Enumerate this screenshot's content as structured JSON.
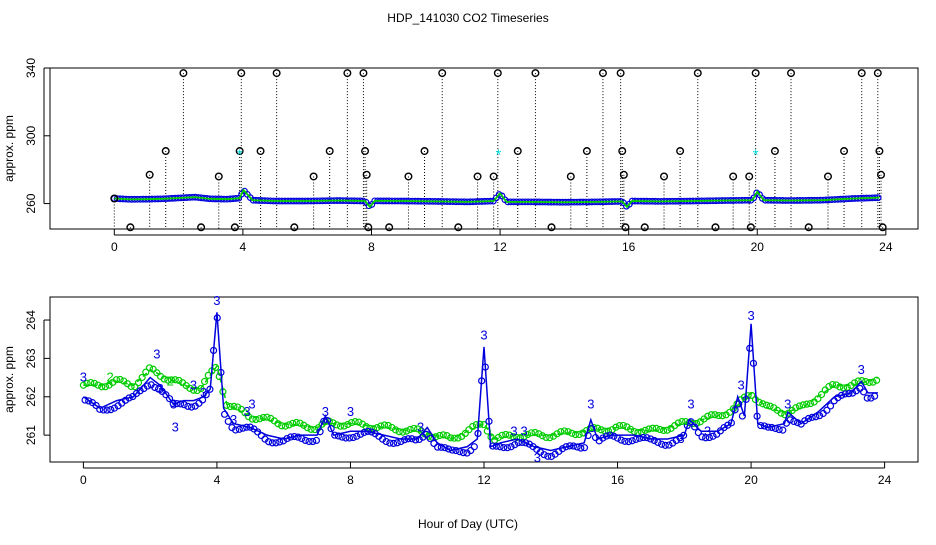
{
  "title": "HDP_141030  CO2 Timeseries",
  "xlabel": "Hour of Day (UTC)",
  "colors": {
    "frame": "#000000",
    "raw_points": "#000000",
    "blue": "#0000dd",
    "green": "#00cc00",
    "cyan": "#00dddd"
  },
  "chart_data": [
    {
      "type": "scatter",
      "panel": "top",
      "title": "HDP_141030  CO2 Timeseries",
      "xlabel": "",
      "ylabel": "approx. ppm",
      "xlim": [
        -2,
        25
      ],
      "ylim": [
        245,
        340
      ],
      "xticks": [
        0,
        4,
        8,
        12,
        16,
        20,
        24
      ],
      "yticks": [
        260,
        300,
        340
      ],
      "xtick_labels": [
        "0",
        "4",
        "8",
        "12",
        "16",
        "20",
        "24"
      ],
      "ytick_labels": [
        "260",
        "300",
        "340"
      ],
      "baseline": [
        [
          0,
          263
        ],
        [
          0.5,
          262.5
        ],
        [
          1,
          262.6
        ],
        [
          1.5,
          262.8
        ],
        [
          2,
          263.3
        ],
        [
          2.5,
          263.8
        ],
        [
          3,
          262.8
        ],
        [
          3.5,
          262.6
        ],
        [
          3.9,
          263.2
        ],
        [
          4.02,
          268
        ],
        [
          4.3,
          262
        ],
        [
          5,
          261.5
        ],
        [
          6,
          261.5
        ],
        [
          7,
          261.8
        ],
        [
          7.8,
          261.5
        ],
        [
          7.95,
          258
        ],
        [
          8.1,
          261.6
        ],
        [
          9,
          261.5
        ],
        [
          10,
          261.3
        ],
        [
          11,
          261
        ],
        [
          11.8,
          261.5
        ],
        [
          12,
          266
        ],
        [
          12.2,
          261
        ],
        [
          13,
          261
        ],
        [
          14,
          260.8
        ],
        [
          15,
          261
        ],
        [
          15.8,
          261.3
        ],
        [
          15.95,
          258
        ],
        [
          16.1,
          261.5
        ],
        [
          17,
          261.3
        ],
        [
          18,
          261.5
        ],
        [
          19,
          261.8
        ],
        [
          19.85,
          262
        ],
        [
          20,
          267
        ],
        [
          20.2,
          262
        ],
        [
          21,
          261.8
        ],
        [
          22,
          262
        ],
        [
          23,
          263
        ],
        [
          23.8,
          263.5
        ]
      ],
      "raw_points": [
        {
          "x": 0,
          "y": 263
        },
        {
          "x": 0.5,
          "y": 246
        },
        {
          "x": 1.1,
          "y": 277
        },
        {
          "x": 1.6,
          "y": 291
        },
        {
          "x": 2.15,
          "y": 337
        },
        {
          "x": 2.7,
          "y": 246
        },
        {
          "x": 3.25,
          "y": 276
        },
        {
          "x": 3.75,
          "y": 246
        },
        {
          "x": 3.9,
          "y": 291
        },
        {
          "x": 3.95,
          "y": 337
        },
        {
          "x": 4.55,
          "y": 291
        },
        {
          "x": 5.05,
          "y": 337
        },
        {
          "x": 5.6,
          "y": 246
        },
        {
          "x": 6.2,
          "y": 276
        },
        {
          "x": 6.7,
          "y": 291
        },
        {
          "x": 7.25,
          "y": 337
        },
        {
          "x": 7.75,
          "y": 337
        },
        {
          "x": 7.8,
          "y": 291
        },
        {
          "x": 7.85,
          "y": 277
        },
        {
          "x": 7.9,
          "y": 246
        },
        {
          "x": 8.55,
          "y": 246
        },
        {
          "x": 9.15,
          "y": 276
        },
        {
          "x": 9.65,
          "y": 291
        },
        {
          "x": 10.2,
          "y": 337
        },
        {
          "x": 10.7,
          "y": 246
        },
        {
          "x": 11.3,
          "y": 276
        },
        {
          "x": 11.8,
          "y": 276
        },
        {
          "x": 11.93,
          "y": 337
        },
        {
          "x": 12.55,
          "y": 291
        },
        {
          "x": 13.1,
          "y": 337
        },
        {
          "x": 13.6,
          "y": 246
        },
        {
          "x": 14.2,
          "y": 276
        },
        {
          "x": 14.7,
          "y": 291
        },
        {
          "x": 15.2,
          "y": 337
        },
        {
          "x": 15.75,
          "y": 337
        },
        {
          "x": 15.8,
          "y": 291
        },
        {
          "x": 15.85,
          "y": 277
        },
        {
          "x": 15.9,
          "y": 246
        },
        {
          "x": 16.5,
          "y": 246
        },
        {
          "x": 17.1,
          "y": 276
        },
        {
          "x": 17.6,
          "y": 291
        },
        {
          "x": 18.15,
          "y": 337
        },
        {
          "x": 18.7,
          "y": 246
        },
        {
          "x": 19.25,
          "y": 276
        },
        {
          "x": 19.75,
          "y": 276
        },
        {
          "x": 19.8,
          "y": 246
        },
        {
          "x": 19.95,
          "y": 337
        },
        {
          "x": 20.55,
          "y": 291
        },
        {
          "x": 21.05,
          "y": 337
        },
        {
          "x": 21.6,
          "y": 246
        },
        {
          "x": 22.2,
          "y": 276
        },
        {
          "x": 22.7,
          "y": 291
        },
        {
          "x": 23.25,
          "y": 337
        },
        {
          "x": 23.75,
          "y": 337
        },
        {
          "x": 23.8,
          "y": 291
        },
        {
          "x": 23.85,
          "y": 277
        },
        {
          "x": 23.9,
          "y": 246
        }
      ],
      "cyan_points": [
        {
          "x": 3.9,
          "y": 289
        },
        {
          "x": 11.95,
          "y": 289
        },
        {
          "x": 19.95,
          "y": 289
        }
      ]
    },
    {
      "type": "line",
      "panel": "bottom",
      "xlabel": "Hour of Day (UTC)",
      "ylabel": "approx. ppm",
      "xlim": [
        -1,
        25
      ],
      "ylim": [
        260.3,
        264.6
      ],
      "xticks": [
        0,
        4,
        8,
        12,
        16,
        20,
        24
      ],
      "yticks": [
        261,
        262,
        263,
        264
      ],
      "xtick_labels": [
        "0",
        "4",
        "8",
        "12",
        "16",
        "20",
        "24"
      ],
      "ytick_labels": [
        "261",
        "262",
        "263",
        "264"
      ],
      "blue_series": [
        [
          0,
          262
        ],
        [
          0.5,
          261.7
        ],
        [
          1,
          261.9
        ],
        [
          1.5,
          262
        ],
        [
          2,
          262.5
        ],
        [
          2.3,
          262.3
        ],
        [
          2.7,
          261.8
        ],
        [
          3,
          261.9
        ],
        [
          3.3,
          261.9
        ],
        [
          3.6,
          262
        ],
        [
          3.8,
          262.2
        ],
        [
          4,
          264.2
        ],
        [
          4.2,
          261.7
        ],
        [
          4.5,
          261.3
        ],
        [
          5,
          261.2
        ],
        [
          5.5,
          261
        ],
        [
          6,
          260.9
        ],
        [
          6.5,
          261
        ],
        [
          7,
          261
        ],
        [
          7.25,
          261.5
        ],
        [
          7.5,
          261
        ],
        [
          8,
          261.1
        ],
        [
          8.5,
          261.1
        ],
        [
          9,
          261
        ],
        [
          9.5,
          260.9
        ],
        [
          10,
          260.9
        ],
        [
          10.3,
          261.2
        ],
        [
          10.6,
          260.8
        ],
        [
          11,
          260.6
        ],
        [
          11.5,
          260.7
        ],
        [
          11.8,
          260.9
        ],
        [
          12,
          263.3
        ],
        [
          12.2,
          260.7
        ],
        [
          12.5,
          260.8
        ],
        [
          13,
          260.9
        ],
        [
          13.5,
          260.7
        ],
        [
          14,
          260.6
        ],
        [
          14.5,
          260.7
        ],
        [
          15,
          260.8
        ],
        [
          15.2,
          261.4
        ],
        [
          15.4,
          260.9
        ],
        [
          15.8,
          261
        ],
        [
          16,
          261
        ],
        [
          16.5,
          261
        ],
        [
          17,
          260.9
        ],
        [
          17.5,
          260.9
        ],
        [
          18,
          261
        ],
        [
          18.15,
          261.4
        ],
        [
          18.5,
          261.1
        ],
        [
          19,
          261.1
        ],
        [
          19.4,
          261.3
        ],
        [
          19.6,
          262
        ],
        [
          19.8,
          261.5
        ],
        [
          20,
          263.9
        ],
        [
          20.2,
          261.3
        ],
        [
          20.5,
          261.2
        ],
        [
          21,
          261.3
        ],
        [
          21.1,
          261.6
        ],
        [
          21.5,
          261.3
        ],
        [
          22,
          261.6
        ],
        [
          22.5,
          262
        ],
        [
          23,
          262.1
        ],
        [
          23.3,
          262.4
        ],
        [
          23.5,
          262.1
        ],
        [
          23.8,
          262.1
        ]
      ],
      "green_series": [
        [
          0,
          262.3
        ],
        [
          0.5,
          262.3
        ],
        [
          1,
          262.4
        ],
        [
          1.5,
          262.3
        ],
        [
          2,
          262.7
        ],
        [
          2.5,
          262.5
        ],
        [
          3,
          262.3
        ],
        [
          3.5,
          262.2
        ],
        [
          4,
          262.8
        ],
        [
          4.3,
          261.8
        ],
        [
          5,
          261.5
        ],
        [
          6,
          261.3
        ],
        [
          7,
          261.2
        ],
        [
          7.3,
          261.3
        ],
        [
          8,
          261.3
        ],
        [
          9,
          261.2
        ],
        [
          10,
          261.1
        ],
        [
          11,
          260.9
        ],
        [
          12,
          261.3
        ],
        [
          12.3,
          260.9
        ],
        [
          13,
          261
        ],
        [
          14,
          261
        ],
        [
          15,
          261.1
        ],
        [
          16,
          261.2
        ],
        [
          17,
          261.1
        ],
        [
          18,
          261.3
        ],
        [
          19,
          261.5
        ],
        [
          19.5,
          261.7
        ],
        [
          20,
          262.1
        ],
        [
          20.5,
          261.7
        ],
        [
          21,
          261.6
        ],
        [
          21.5,
          261.7
        ],
        [
          22,
          262
        ],
        [
          22.5,
          262.3
        ],
        [
          23,
          262.3
        ],
        [
          23.5,
          262.4
        ],
        [
          23.8,
          262.5
        ]
      ],
      "label_points": [
        {
          "text": "3",
          "x": 0,
          "y": 262.5,
          "series": "blue"
        },
        {
          "text": "2",
          "x": 0.8,
          "y": 262.5,
          "series": "green"
        },
        {
          "text": "3",
          "x": 2.2,
          "y": 263.1,
          "series": "blue"
        },
        {
          "text": "3",
          "x": 2.3,
          "y": 262.2,
          "series": "blue"
        },
        {
          "text": "3",
          "x": 2.7,
          "y": 261.8,
          "series": "blue"
        },
        {
          "text": "2",
          "x": 2.6,
          "y": 262.4,
          "series": "green"
        },
        {
          "text": "3",
          "x": 2.75,
          "y": 261.2,
          "series": "blue"
        },
        {
          "text": "3",
          "x": 3.3,
          "y": 262.3,
          "series": "blue"
        },
        {
          "text": "3",
          "x": 3.6,
          "y": 262.1,
          "series": "blue"
        },
        {
          "text": "3",
          "x": 4,
          "y": 264.5,
          "series": "blue"
        },
        {
          "text": "3",
          "x": 4.5,
          "y": 261.4,
          "series": "blue"
        },
        {
          "text": "3",
          "x": 4.9,
          "y": 261.6,
          "series": "blue"
        },
        {
          "text": "3",
          "x": 5.05,
          "y": 261.8,
          "series": "blue"
        },
        {
          "text": "3",
          "x": 7.25,
          "y": 261.6,
          "series": "blue"
        },
        {
          "text": "3",
          "x": 8,
          "y": 261.6,
          "series": "blue"
        },
        {
          "text": "3",
          "x": 10.1,
          "y": 261.2,
          "series": "blue"
        },
        {
          "text": "3",
          "x": 12,
          "y": 263.6,
          "series": "blue"
        },
        {
          "text": "3",
          "x": 12.9,
          "y": 261.1,
          "series": "blue"
        },
        {
          "text": "3",
          "x": 13.2,
          "y": 261.1,
          "series": "blue"
        },
        {
          "text": "3",
          "x": 13.6,
          "y": 260.4,
          "series": "blue"
        },
        {
          "text": "3",
          "x": 15.2,
          "y": 261.8,
          "series": "blue"
        },
        {
          "text": "3",
          "x": 17.9,
          "y": 260.9,
          "series": "blue"
        },
        {
          "text": "3",
          "x": 18.2,
          "y": 261.8,
          "series": "blue"
        },
        {
          "text": "3",
          "x": 18.7,
          "y": 261.1,
          "series": "blue"
        },
        {
          "text": "3",
          "x": 19.7,
          "y": 262.3,
          "series": "blue"
        },
        {
          "text": "3",
          "x": 20,
          "y": 264.1,
          "series": "blue"
        },
        {
          "text": "3",
          "x": 21.1,
          "y": 261.8,
          "series": "blue"
        },
        {
          "text": "3",
          "x": 23.3,
          "y": 262.7,
          "series": "blue"
        }
      ]
    }
  ]
}
